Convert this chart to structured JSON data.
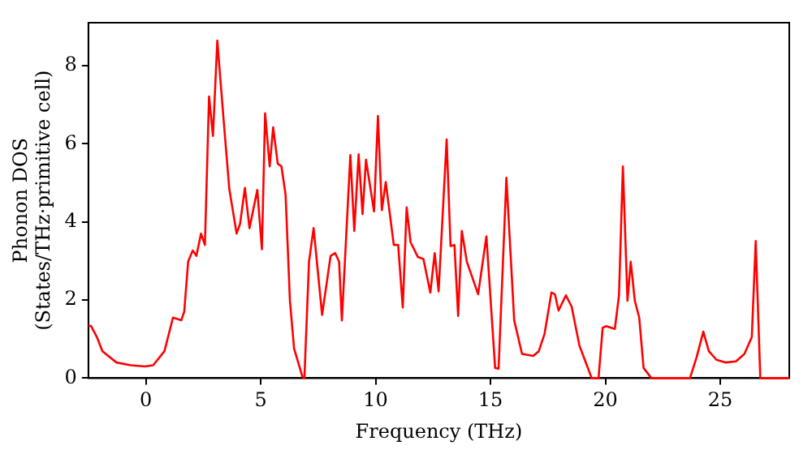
{
  "chart_data": {
    "type": "line",
    "xlabel": "Frequency (THz)",
    "ylabel": "Phonon DOS\n(States/THz·primitive cell)",
    "xlim": [
      -2.5,
      28
    ],
    "ylim": [
      0,
      9.1
    ],
    "xticks": [
      0,
      5,
      10,
      15,
      20,
      25
    ],
    "yticks": [
      0,
      2,
      4,
      6,
      8
    ],
    "grid": false,
    "legend": false,
    "marker": "none",
    "line_style": "solid",
    "series": [
      {
        "color": "#ff0000",
        "x": [
          -2.5,
          -2.38,
          -2.13,
          -1.89,
          -1.28,
          -0.66,
          -0.05,
          0.32,
          0.81,
          1.18,
          1.54,
          1.67,
          1.84,
          2.04,
          2.2,
          2.4,
          2.57,
          2.75,
          2.92,
          3.11,
          3.38,
          3.63,
          3.95,
          4.1,
          4.31,
          4.51,
          4.85,
          5.05,
          5.19,
          5.39,
          5.54,
          5.74,
          5.9,
          6.08,
          6.27,
          6.45,
          6.81,
          6.9,
          7.1,
          7.3,
          7.67,
          8.04,
          8.24,
          8.41,
          8.53,
          8.9,
          9.07,
          9.26,
          9.43,
          9.58,
          9.93,
          10.1,
          10.27,
          10.44,
          10.79,
          10.98,
          11.18,
          11.35,
          11.52,
          11.84,
          12.08,
          12.38,
          12.57,
          12.74,
          13.09,
          13.26,
          13.43,
          13.59,
          13.75,
          13.97,
          14.46,
          14.82,
          15.2,
          15.35,
          15.69,
          16.03,
          16.37,
          16.86,
          17.1,
          17.35,
          17.65,
          17.8,
          17.96,
          18.28,
          18.53,
          18.87,
          19.19,
          19.4,
          19.7,
          19.88,
          20.03,
          20.41,
          20.59,
          20.76,
          20.96,
          21.1,
          21.28,
          21.47,
          21.66,
          22.0,
          23.68,
          23.97,
          24.26,
          24.5,
          24.83,
          25.24,
          25.68,
          26.05,
          26.37,
          26.54,
          26.74,
          28.0
        ],
        "values": [
          1.35,
          1.33,
          1.05,
          0.69,
          0.4,
          0.33,
          0.3,
          0.33,
          0.69,
          1.55,
          1.48,
          1.7,
          2.98,
          3.27,
          3.13,
          3.7,
          3.41,
          7.21,
          6.2,
          8.64,
          6.64,
          4.85,
          3.7,
          3.95,
          4.87,
          3.84,
          4.82,
          3.3,
          6.78,
          5.42,
          6.42,
          5.49,
          5.42,
          4.7,
          1.98,
          0.76,
          0.04,
          0,
          2.98,
          3.84,
          1.62,
          3.13,
          3.2,
          2.98,
          1.48,
          5.71,
          3.77,
          5.73,
          4.2,
          5.59,
          4.27,
          6.71,
          4.3,
          5.02,
          3.41,
          3.41,
          1.81,
          4.37,
          3.48,
          3.1,
          3.05,
          2.19,
          3.2,
          2.22,
          6.11,
          3.38,
          3.41,
          1.59,
          3.77,
          2.98,
          2.15,
          3.63,
          0.26,
          0.24,
          5.13,
          1.48,
          0.62,
          0.57,
          0.69,
          1.13,
          2.19,
          2.15,
          1.73,
          2.12,
          1.83,
          0.83,
          0.33,
          0,
          0,
          1.29,
          1.33,
          1.26,
          2.12,
          5.42,
          1.98,
          2.98,
          1.98,
          1.55,
          0.26,
          0,
          0,
          0.54,
          1.19,
          0.69,
          0.47,
          0.4,
          0.43,
          0.62,
          1.05,
          3.51,
          0,
          0
        ]
      }
    ]
  }
}
